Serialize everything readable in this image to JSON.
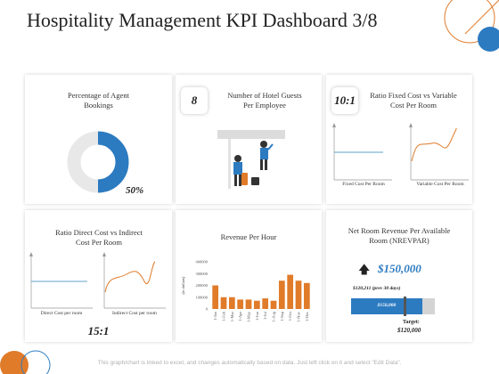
{
  "page": {
    "title": "Hospitality Management KPI Dashboard 3/8",
    "footer": "This graph/chart is linked to excel, and changes automatically based on data. Just left click on it and select \"Edit Data\"."
  },
  "cards": {
    "agent_bookings": {
      "title": "Percentage of Agent Bookings",
      "percent_label": "50%"
    },
    "hotel_guests": {
      "title": "Number of Hotel Guests Per Employee",
      "badge": "8"
    },
    "fixed_variable": {
      "title": "Ratio Fixed Cost vs Variable Cost Per Room",
      "badge": "10:1",
      "left_label": "Fixed Cost Per Room",
      "right_label": "Variable Cost Per Room"
    },
    "direct_indirect": {
      "title": "Ratio Direct Cost vs Indirect Cost Per Room",
      "ratio": "15:1",
      "left_label": "Direct Cost per room",
      "right_label": "Indirect Cost per room"
    },
    "revenue_per_hour": {
      "title": "Revenue Per Hour"
    },
    "nrevpar": {
      "title": "Net Room Revenue Per Available Room (NREVPAR)",
      "value": "$150,000",
      "prev_note": "$120,211 (prev 30 days)",
      "bar_label": "$150,000",
      "target_label": "Target:",
      "target_value": "$120,000",
      "progress": 0.85
    }
  },
  "chart_data": {
    "type": "bar",
    "title": "Revenue Per Hour",
    "ylabel": "(in dollars)",
    "categories": [
      "1-Jan",
      "1-Feb",
      "1-Mar",
      "1-Apr",
      "1-May",
      "1-Jun",
      "1-Jul",
      "1-Aug",
      "1-Sep",
      "1-Oct",
      "1-Nov",
      "1-Dec"
    ],
    "values": [
      200000,
      100000,
      100000,
      80000,
      80000,
      70000,
      90000,
      70000,
      240000,
      290000,
      240000,
      220000
    ],
    "yticks": [
      0,
      100000,
      200000,
      300000,
      400000
    ],
    "ylim": [
      0,
      400000
    ],
    "colors": {
      "bar": "#e07b2a"
    }
  },
  "colors": {
    "accent_blue": "#2c7bc1",
    "accent_orange": "#e07b2a",
    "line_blue": "#5fa3c9",
    "grey": "#c8c8c8"
  }
}
